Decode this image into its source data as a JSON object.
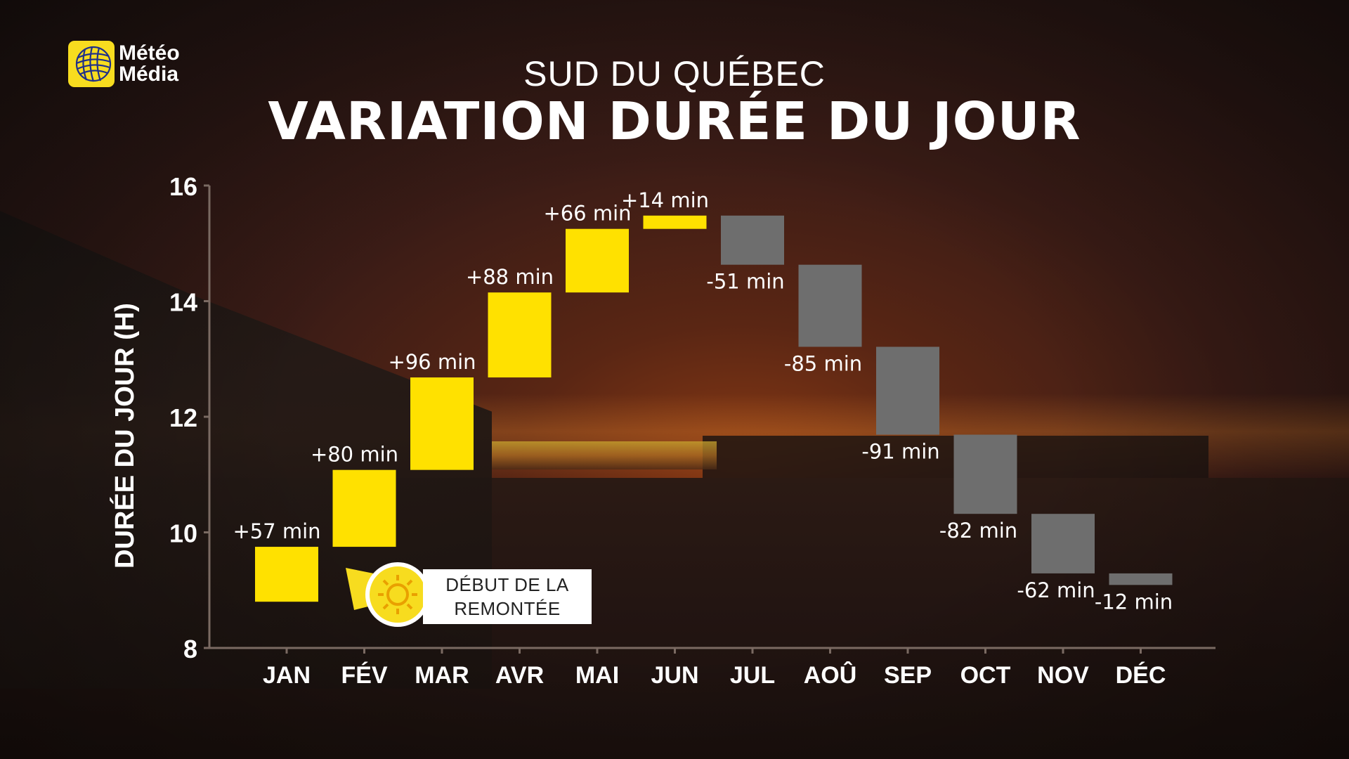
{
  "brand": {
    "logo_line1": "Météo",
    "logo_line2": "Média",
    "logo_icon": "globe-icon"
  },
  "header": {
    "subtitle": "SUD DU QUÉBEC",
    "title": "VARIATION DURÉE DU JOUR"
  },
  "callout": {
    "line1": "DÉBUT DE LA",
    "line2": "REMONTÉE",
    "icon": "sun-icon"
  },
  "colors": {
    "increase": "#ffe100",
    "decrease": "#6e6e6e",
    "text": "#ffffff",
    "axis": "#7a6a62"
  },
  "chart_data": {
    "type": "bar",
    "subtype": "floating-waterfall",
    "ylabel": "DURÉE DU JOUR (H)",
    "ylim": [
      8,
      16
    ],
    "yticks": [
      8,
      10,
      12,
      14,
      16
    ],
    "categories": [
      "JAN",
      "FÉV",
      "MAR",
      "AVR",
      "MAI",
      "JUN",
      "JUL",
      "AOÛ",
      "SEP",
      "OCT",
      "NOV",
      "DÉC"
    ],
    "bars": [
      {
        "start": 8.8,
        "end": 9.75,
        "label": "+57 min"
      },
      {
        "start": 9.75,
        "end": 11.08,
        "label": "+80 min"
      },
      {
        "start": 11.08,
        "end": 12.68,
        "label": "+96 min"
      },
      {
        "start": 12.68,
        "end": 14.15,
        "label": "+88 min"
      },
      {
        "start": 14.15,
        "end": 15.25,
        "label": "+66 min"
      },
      {
        "start": 15.25,
        "end": 15.48,
        "label": "+14 min"
      },
      {
        "start": 15.48,
        "end": 14.63,
        "label": "-51 min"
      },
      {
        "start": 14.63,
        "end": 13.21,
        "label": "-85 min"
      },
      {
        "start": 13.21,
        "end": 11.69,
        "label": "-91 min"
      },
      {
        "start": 11.69,
        "end": 10.32,
        "label": "-82 min"
      },
      {
        "start": 10.32,
        "end": 9.29,
        "label": "-62 min"
      },
      {
        "start": 9.29,
        "end": 9.09,
        "label": "-12 min"
      }
    ]
  }
}
